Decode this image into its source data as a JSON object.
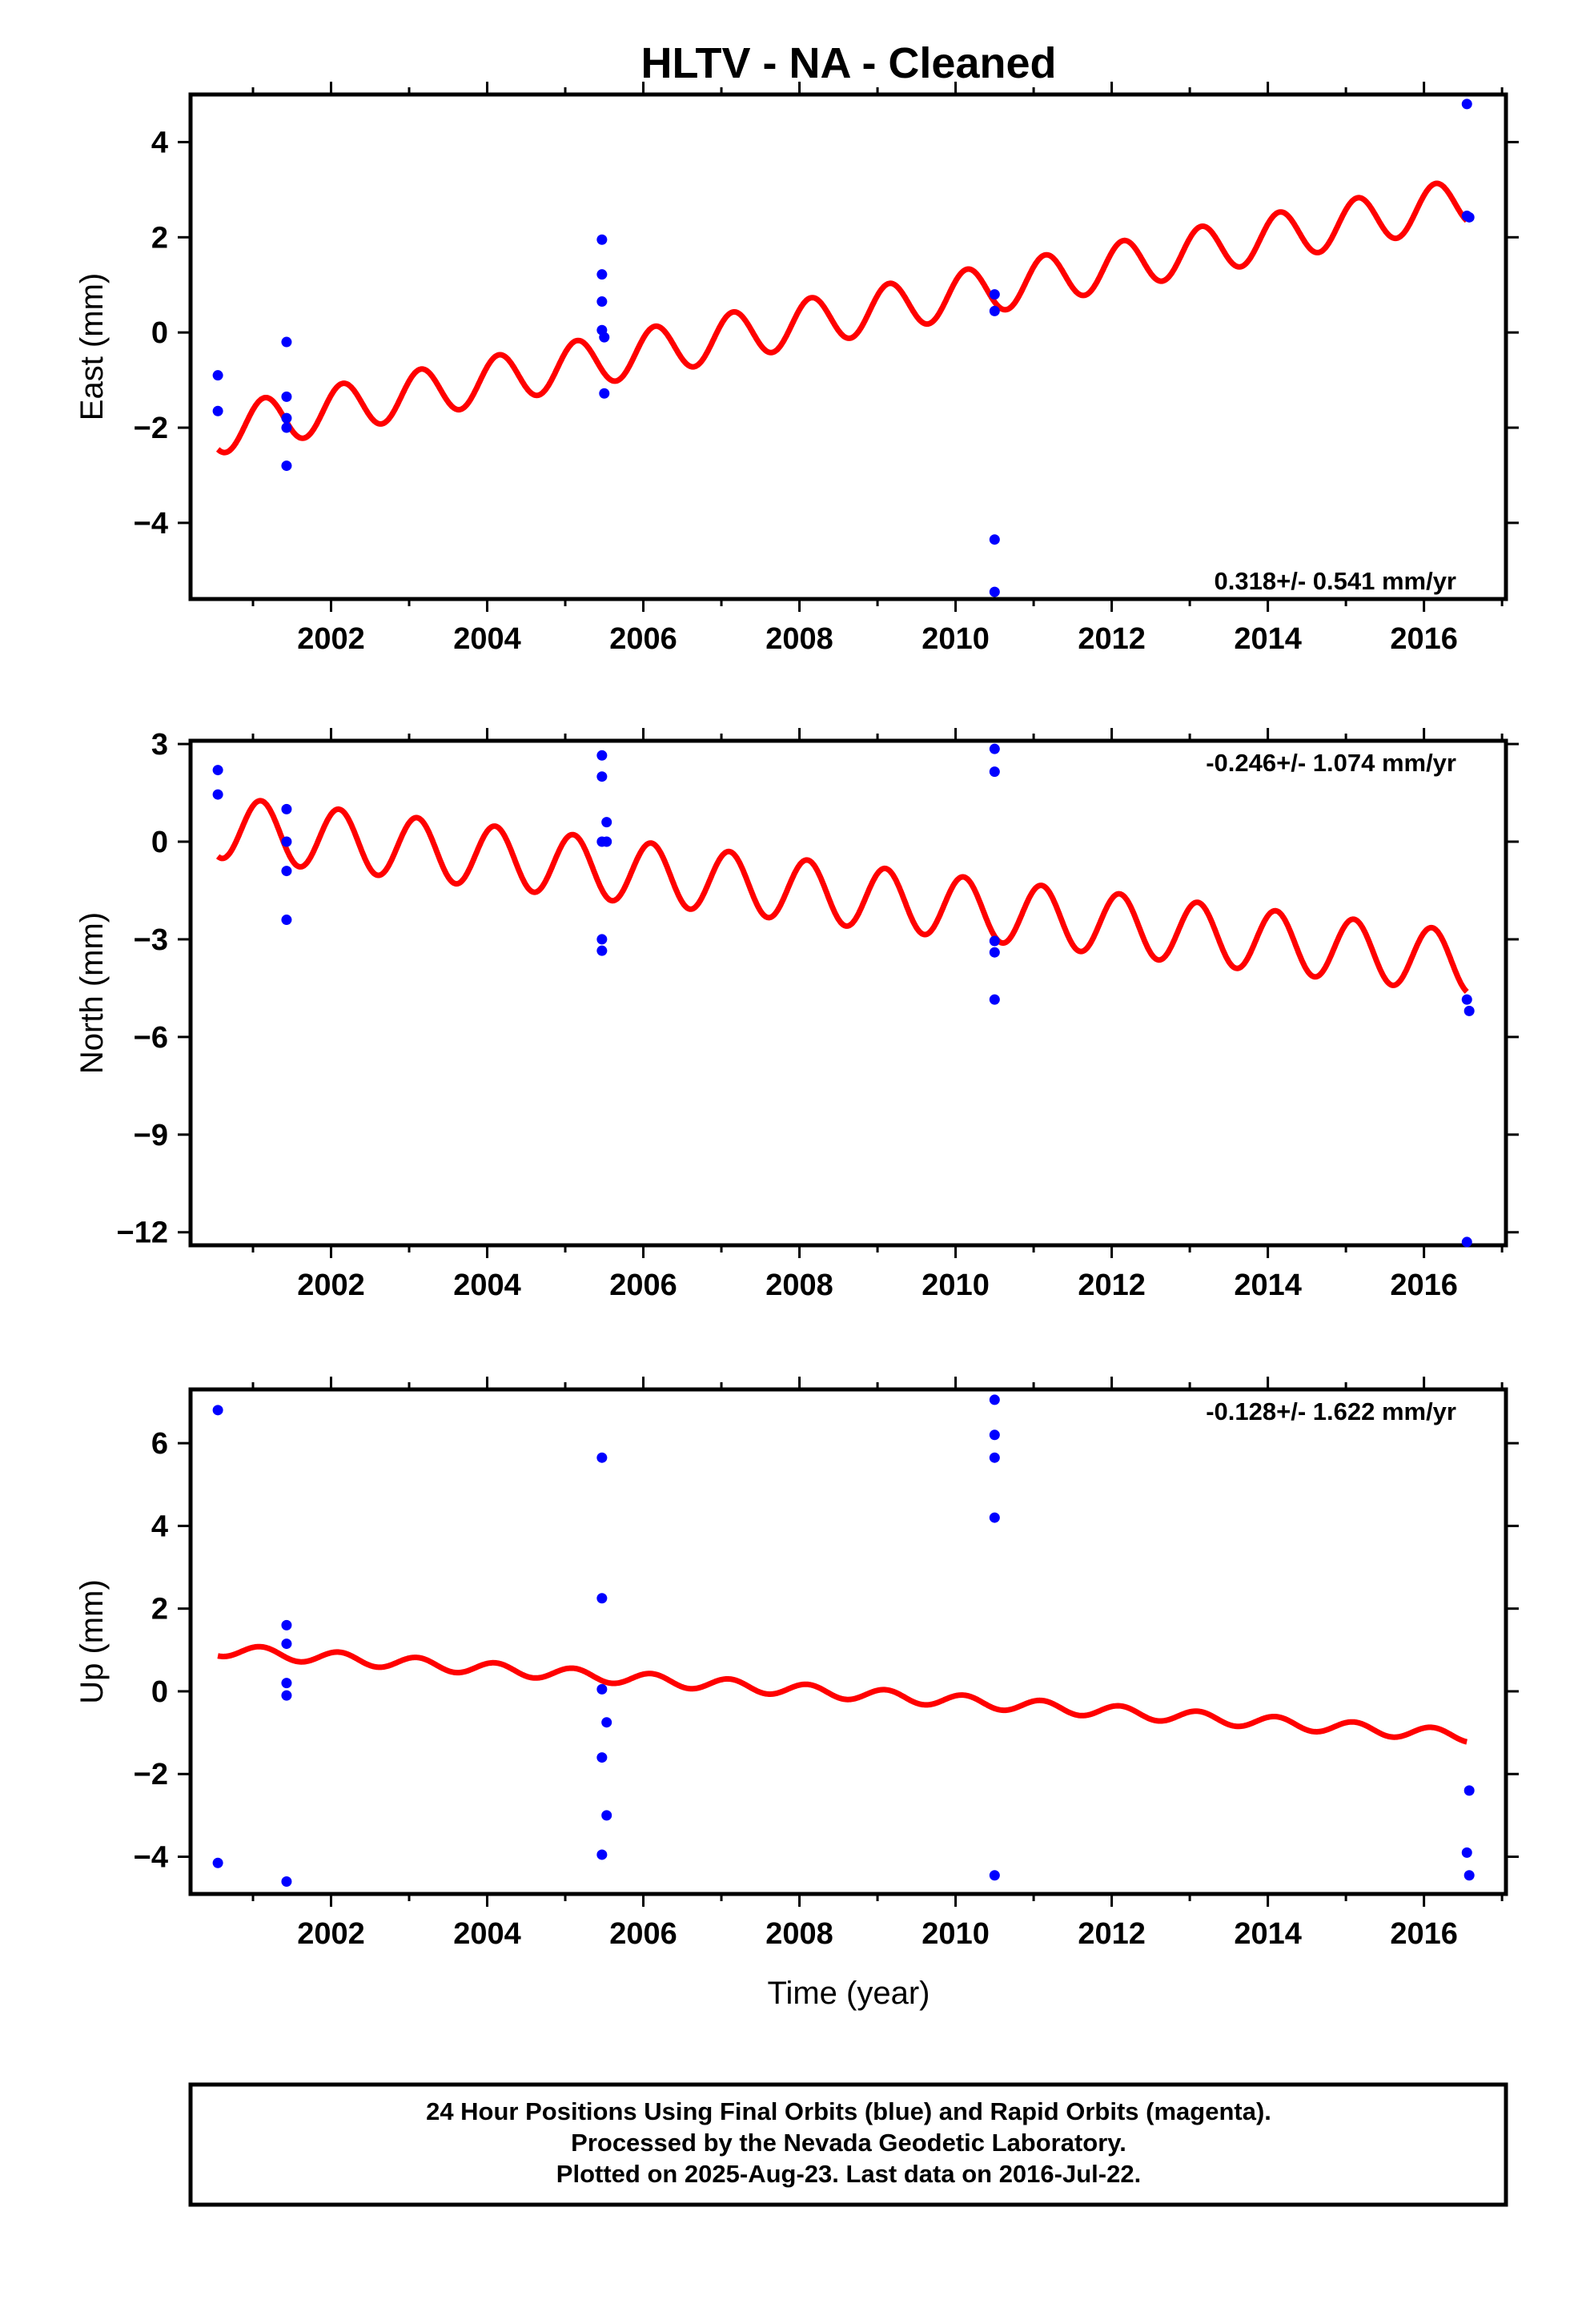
{
  "title": "HLTV  - NA - Cleaned",
  "xlabel": "Time (year)",
  "x_tick_labels": [
    "2002",
    "2004",
    "2006",
    "2008",
    "2010",
    "2012",
    "2014",
    "2016"
  ],
  "colors": {
    "data": "#0000ff",
    "model": "#ff0000",
    "frame": "#000000"
  },
  "footer": {
    "lines": [
      "24 Hour Positions Using Final Orbits (blue) and Rapid Orbits (magenta).",
      "Processed by the Nevada Geodetic Laboratory.",
      "Plotted on 2025-Aug-23. Last data on 2016-Jul-22."
    ]
  },
  "chart_data": [
    {
      "type": "scatter",
      "component": "East",
      "ylabel": "East (mm)",
      "xlim": [
        2000.2,
        2017.05
      ],
      "ylim": [
        -5.6,
        5.0
      ],
      "yticks": [
        -4,
        -2,
        0,
        2,
        4
      ],
      "ytick_labels": [
        "−4",
        "−2",
        "0",
        "2",
        "4"
      ],
      "xticks": [
        2002,
        2004,
        2006,
        2008,
        2010,
        2012,
        2014,
        2016
      ],
      "rate_text": "0.318+/- 0.541 mm/yr",
      "rate_position": "bottom-right",
      "points": [
        [
          2000.55,
          -0.9
        ],
        [
          2000.55,
          -1.65
        ],
        [
          2001.43,
          -0.2
        ],
        [
          2001.43,
          -1.35
        ],
        [
          2001.43,
          -1.8
        ],
        [
          2001.43,
          -2.0
        ],
        [
          2001.43,
          -2.8
        ],
        [
          2005.47,
          1.95
        ],
        [
          2005.47,
          1.22
        ],
        [
          2005.47,
          0.65
        ],
        [
          2005.47,
          0.05
        ],
        [
          2005.5,
          -0.1
        ],
        [
          2005.5,
          -1.28
        ],
        [
          2010.5,
          0.8
        ],
        [
          2010.5,
          0.45
        ],
        [
          2010.5,
          -4.35
        ],
        [
          2010.5,
          -5.45
        ],
        [
          2016.55,
          4.8
        ],
        [
          2016.55,
          2.45
        ],
        [
          2016.58,
          2.42
        ]
      ],
      "model": {
        "x_start": 2000.55,
        "x_end": 2016.55,
        "y_start": -2.05,
        "trend_mm_yr": 0.3,
        "annual_amplitude": 0.5,
        "annual_phase_years": 0.35
      }
    },
    {
      "type": "scatter",
      "component": "North",
      "ylabel": "North (mm)",
      "xlim": [
        2000.2,
        2017.05
      ],
      "ylim": [
        -12.4,
        3.1
      ],
      "yticks": [
        -12,
        -9,
        -6,
        -3,
        0,
        3
      ],
      "ytick_labels": [
        "−12",
        "−9",
        "−6",
        "−3",
        "0",
        "3"
      ],
      "xticks": [
        2002,
        2004,
        2006,
        2008,
        2010,
        2012,
        2014,
        2016
      ],
      "rate_text": "-0.246+/- 1.074 mm/yr",
      "rate_position": "top-right",
      "points": [
        [
          2000.55,
          2.2
        ],
        [
          2000.55,
          1.45
        ],
        [
          2001.43,
          1.0
        ],
        [
          2001.43,
          0.0
        ],
        [
          2001.43,
          -0.9
        ],
        [
          2001.43,
          -2.4
        ],
        [
          2005.47,
          2.65
        ],
        [
          2005.47,
          2.0
        ],
        [
          2005.47,
          0.0
        ],
        [
          2005.53,
          0.6
        ],
        [
          2005.53,
          0.0
        ],
        [
          2005.47,
          -3.0
        ],
        [
          2005.47,
          -3.35
        ],
        [
          2010.5,
          2.85
        ],
        [
          2010.5,
          2.15
        ],
        [
          2010.5,
          -3.05
        ],
        [
          2010.5,
          -3.4
        ],
        [
          2010.5,
          -4.85
        ],
        [
          2016.55,
          -4.85
        ],
        [
          2016.58,
          -5.2
        ],
        [
          2016.55,
          -12.3
        ]
      ],
      "model": {
        "x_start": 2000.55,
        "x_end": 2016.55,
        "y_start": 0.45,
        "trend_mm_yr": -0.26,
        "annual_amplitude": 0.95,
        "annual_phase_years": 0.3
      }
    },
    {
      "type": "scatter",
      "component": "Up",
      "ylabel": "Up (mm)",
      "xlim": [
        2000.2,
        2017.05
      ],
      "ylim": [
        -4.9,
        7.3
      ],
      "yticks": [
        -4,
        -2,
        0,
        2,
        4,
        6
      ],
      "ytick_labels": [
        "−4",
        "−2",
        "0",
        "2",
        "4",
        "6"
      ],
      "xticks": [
        2002,
        2004,
        2006,
        2008,
        2010,
        2012,
        2014,
        2016
      ],
      "rate_text": "-0.128+/- 1.622 mm/yr",
      "rate_position": "top-right",
      "points": [
        [
          2000.55,
          6.8
        ],
        [
          2000.55,
          -4.15
        ],
        [
          2001.43,
          1.6
        ],
        [
          2001.43,
          1.15
        ],
        [
          2001.43,
          0.2
        ],
        [
          2001.43,
          -0.1
        ],
        [
          2001.43,
          -4.6
        ],
        [
          2005.47,
          5.65
        ],
        [
          2005.47,
          2.25
        ],
        [
          2005.47,
          0.05
        ],
        [
          2005.53,
          -0.75
        ],
        [
          2005.47,
          -1.6
        ],
        [
          2005.53,
          -3.0
        ],
        [
          2005.47,
          -3.95
        ],
        [
          2010.5,
          7.05
        ],
        [
          2010.5,
          6.2
        ],
        [
          2010.5,
          5.65
        ],
        [
          2010.5,
          4.2
        ],
        [
          2010.5,
          -4.45
        ],
        [
          2016.58,
          -2.4
        ],
        [
          2016.55,
          -3.9
        ],
        [
          2016.58,
          -4.45
        ]
      ],
      "model": {
        "x_start": 2000.55,
        "x_end": 2016.55,
        "y_start": 1.0,
        "trend_mm_yr": -0.13,
        "annual_amplitude": 0.15,
        "annual_phase_years": 0.3
      }
    }
  ]
}
